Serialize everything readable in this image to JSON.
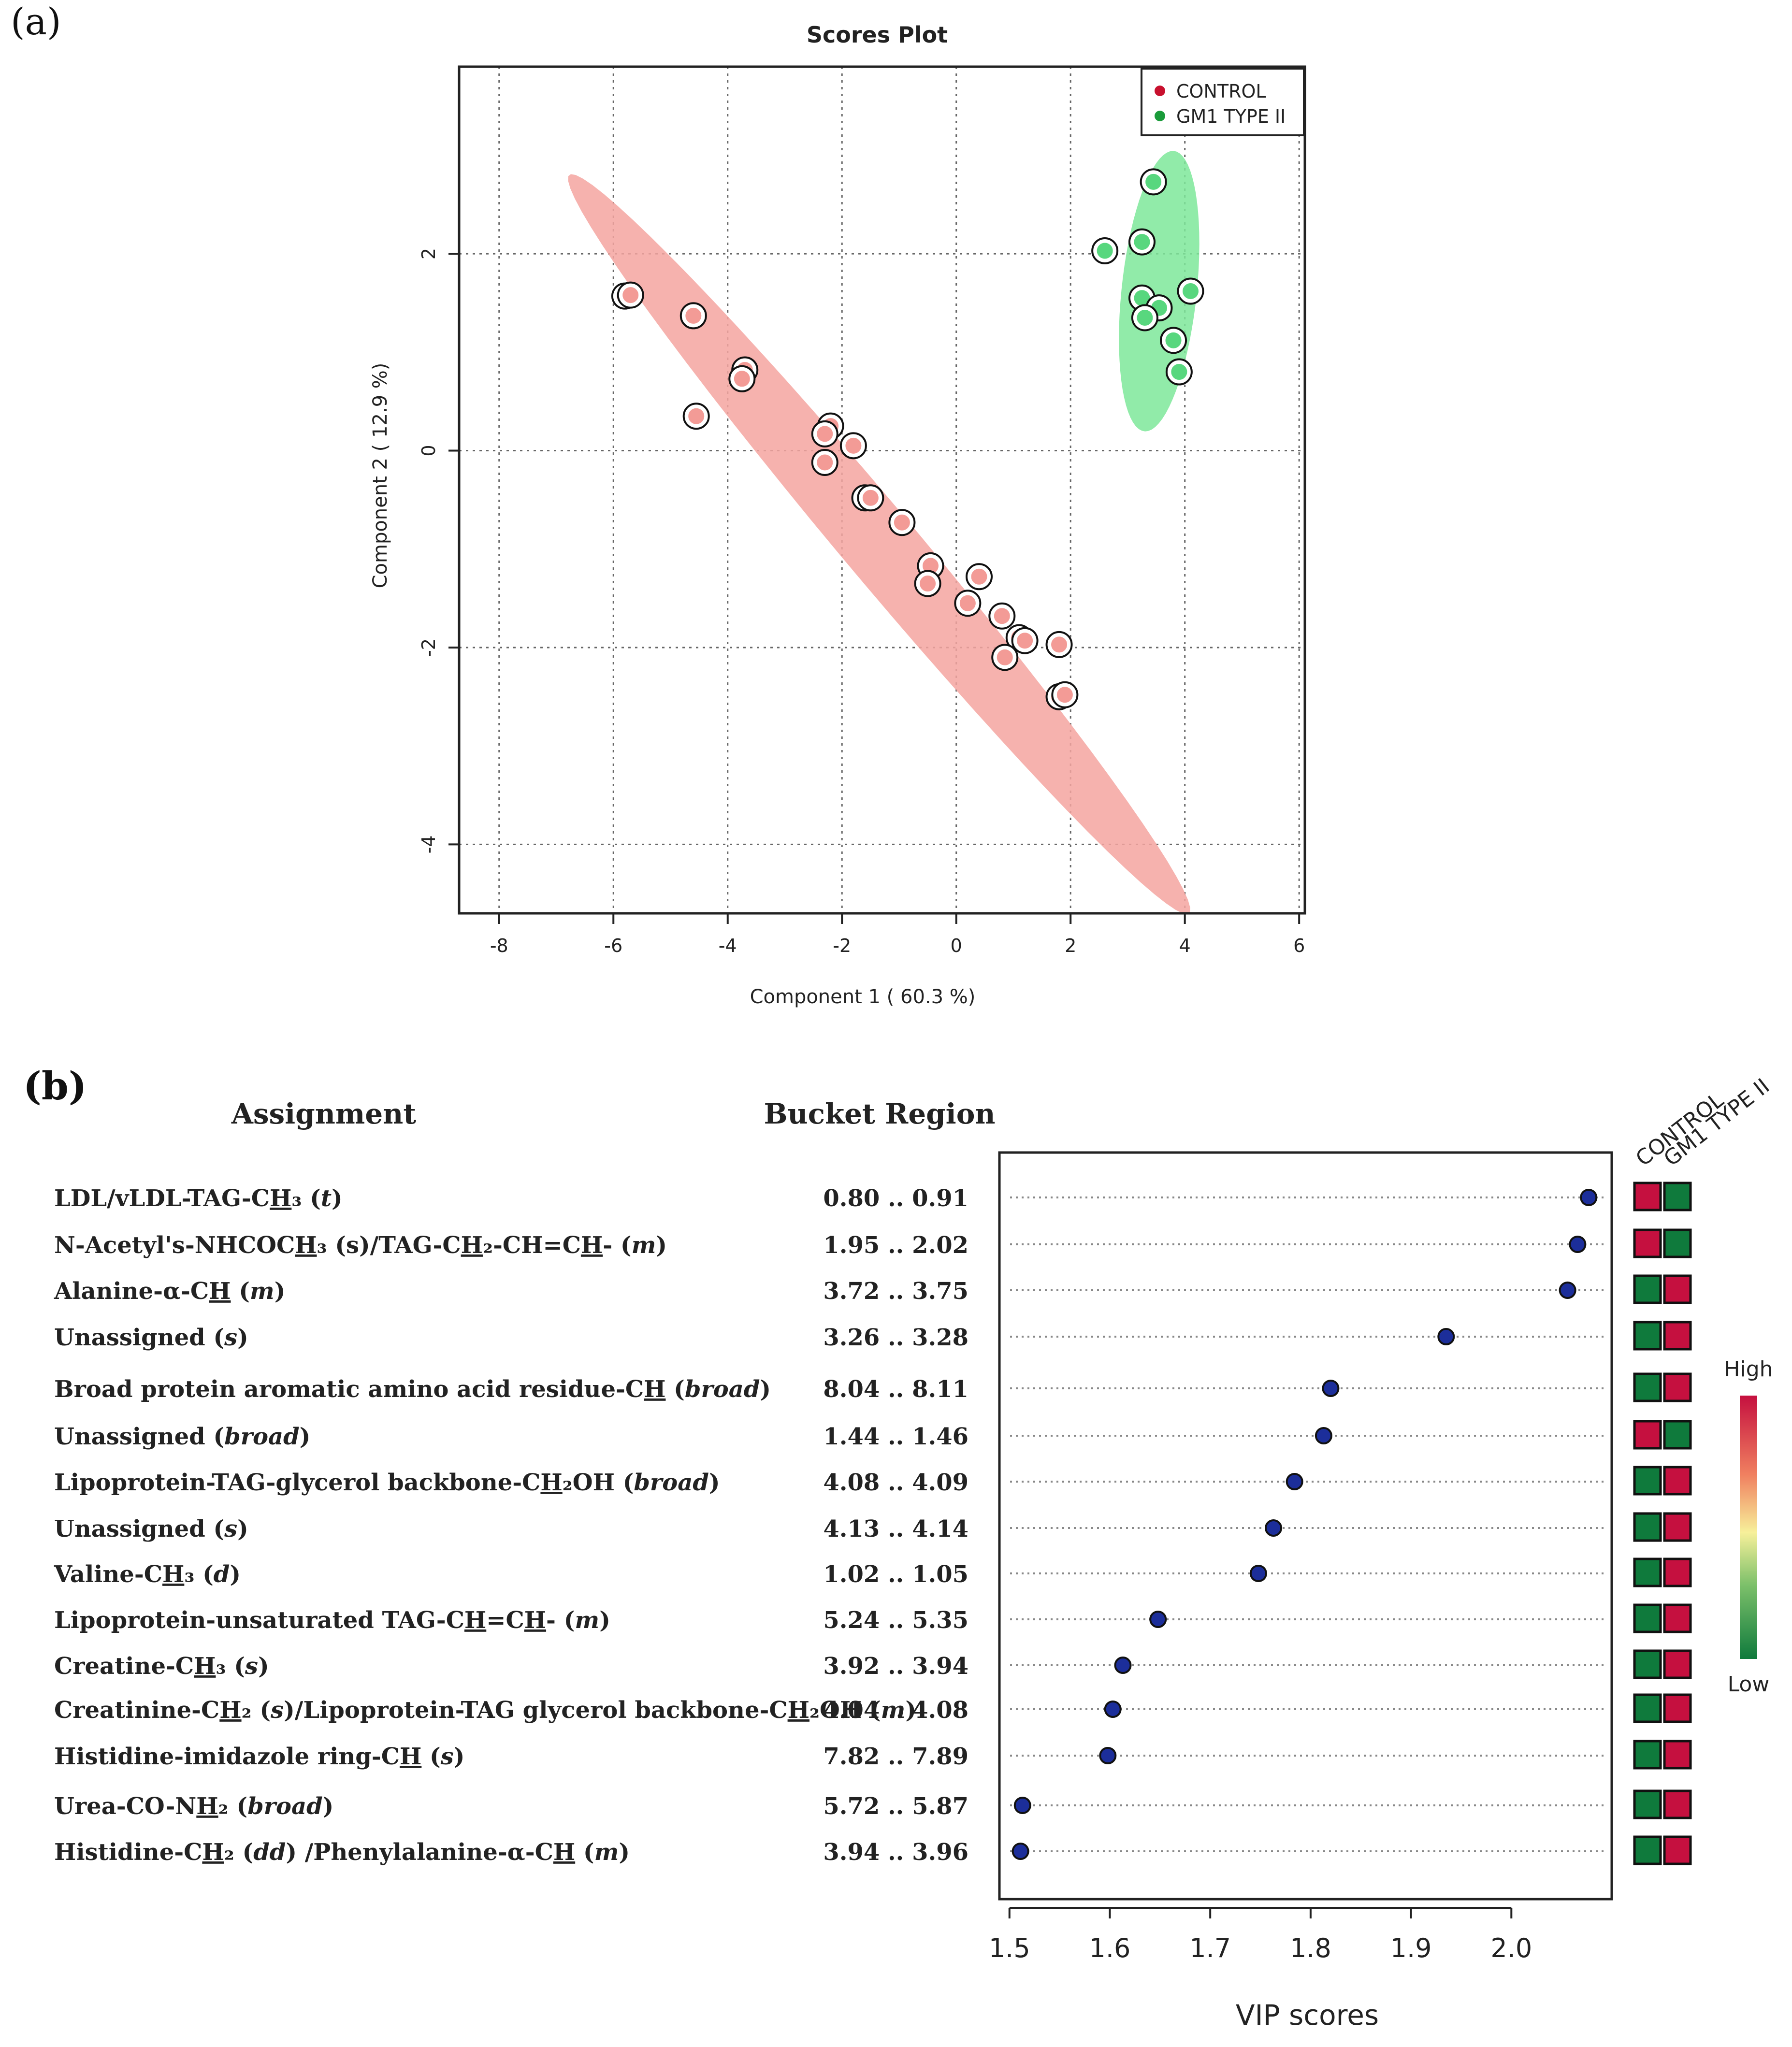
{
  "panel_a": {
    "label": "(a)",
    "chart_data": {
      "type": "scatter",
      "title": "Scores Plot",
      "xlabel": "Component 1 ( 60.3 %)",
      "ylabel": "Component 2 ( 12.9 %)",
      "xlim": [
        -8.7,
        6.1
      ],
      "ylim": [
        -4.7,
        3.9
      ],
      "xticks": [
        -8,
        -6,
        -4,
        -2,
        0,
        2,
        4,
        6
      ],
      "yticks": [
        -4,
        -2,
        0,
        2
      ],
      "xtick_labels": [
        "-8",
        "-6",
        "-4",
        "-2",
        "0",
        "2",
        "4",
        "6"
      ],
      "ytick_labels": [
        "-4",
        "-2",
        "0",
        "2"
      ],
      "grid": true,
      "legend_position": "top-right",
      "series": [
        {
          "name": "CONTROL",
          "marker_color": "#c8102e",
          "point_fill": "#f39b96",
          "ellipse_fill": "#f4a4a0",
          "ellipse": {
            "center": [
              -1.35,
              -0.95
            ],
            "semi_major": 6.6,
            "semi_minor": 0.48,
            "angle_deg": -34.5
          },
          "points": [
            [
              -5.8,
              1.57
            ],
            [
              -5.7,
              1.58
            ],
            [
              -4.6,
              1.37
            ],
            [
              -4.55,
              0.35
            ],
            [
              -3.7,
              0.82
            ],
            [
              -3.75,
              0.73
            ],
            [
              -2.2,
              0.25
            ],
            [
              -2.3,
              0.17
            ],
            [
              -1.8,
              0.05
            ],
            [
              -2.3,
              -0.12
            ],
            [
              -1.6,
              -0.48
            ],
            [
              -1.5,
              -0.48
            ],
            [
              -0.95,
              -0.73
            ],
            [
              -0.45,
              -1.17
            ],
            [
              -0.5,
              -1.35
            ],
            [
              0.4,
              -1.28
            ],
            [
              0.2,
              -1.55
            ],
            [
              0.8,
              -1.68
            ],
            [
              1.1,
              -1.9
            ],
            [
              1.2,
              -1.93
            ],
            [
              1.8,
              -1.97
            ],
            [
              0.85,
              -2.1
            ],
            [
              1.8,
              -2.5
            ],
            [
              1.9,
              -2.48
            ]
          ]
        },
        {
          "name": "GM1 TYPE II",
          "marker_color": "#1a9b3a",
          "point_fill": "#58d77e",
          "ellipse_fill": "#7ee89a",
          "ellipse": {
            "center": [
              3.55,
              1.62
            ],
            "semi_major": 1.45,
            "semi_minor": 0.65,
            "angle_deg": 78
          },
          "points": [
            [
              3.45,
              2.73
            ],
            [
              2.6,
              2.03
            ],
            [
              3.25,
              2.12
            ],
            [
              4.1,
              1.62
            ],
            [
              3.25,
              1.55
            ],
            [
              3.55,
              1.45
            ],
            [
              3.3,
              1.35
            ],
            [
              3.8,
              1.12
            ],
            [
              3.9,
              0.8
            ]
          ]
        }
      ]
    }
  },
  "panel_b": {
    "label": "(b)",
    "header_assignment": "Assignment",
    "header_bucket": "Bucket Region",
    "heat_columns": [
      "CONTROL",
      "GM1 TYPE II"
    ],
    "scale_high": "High",
    "scale_low": "Low",
    "colors": {
      "high": "#c5103f",
      "low": "#0f7a3c",
      "point": "#1c2e9a"
    },
    "chart_data": {
      "type": "scatter",
      "xlabel": "VIP scores",
      "xlim": [
        1.49,
        2.1
      ],
      "xticks": [
        1.5,
        1.6,
        1.7,
        1.8,
        1.9,
        2.0
      ],
      "xtick_labels": [
        "1.5",
        "1.6",
        "1.7",
        "1.8",
        "1.9",
        "2.0"
      ],
      "rows": [
        {
          "assignment": [
            {
              "t": "LDL/vLDL-TAG-C"
            },
            {
              "t": "H",
              "u": 1
            },
            {
              "t": "₃ ("
            },
            {
              "t": "t",
              "i": 1
            },
            {
              "t": ")"
            }
          ],
          "bucket": "0.80 .. 0.91",
          "vip": 2.077,
          "heat": [
            "high",
            "low"
          ]
        },
        {
          "assignment": [
            {
              "t": "N-Acetyl's-NHCOC"
            },
            {
              "t": "H",
              "u": 1
            },
            {
              "t": "₃ (s)/TAG-C"
            },
            {
              "t": "H",
              "u": 1
            },
            {
              "t": "₂-CH=C"
            },
            {
              "t": "H",
              "u": 1
            },
            {
              "t": "- ("
            },
            {
              "t": "m",
              "i": 1
            },
            {
              "t": ")"
            }
          ],
          "bucket": "1.95 .. 2.02",
          "vip": 2.066,
          "heat": [
            "high",
            "low"
          ]
        },
        {
          "assignment": [
            {
              "t": "Alanine-α-C"
            },
            {
              "t": "H",
              "u": 1
            },
            {
              "t": " ("
            },
            {
              "t": "m",
              "i": 1
            },
            {
              "t": ")"
            }
          ],
          "bucket": "3.72 .. 3.75",
          "vip": 2.056,
          "heat": [
            "low",
            "high"
          ]
        },
        {
          "assignment": [
            {
              "t": "Unassigned ("
            },
            {
              "t": "s",
              "i": 1
            },
            {
              "t": ")"
            }
          ],
          "bucket": "3.26 .. 3.28",
          "vip": 1.935,
          "heat": [
            "low",
            "high"
          ]
        },
        {
          "assignment": [
            {
              "t": "Broad protein aromatic amino acid residue-C"
            },
            {
              "t": "H",
              "u": 1
            },
            {
              "t": " ("
            },
            {
              "t": "broad",
              "i": 1
            },
            {
              "t": ")"
            }
          ],
          "bucket": "8.04 .. 8.11",
          "vip": 1.82,
          "heat": [
            "low",
            "high"
          ]
        },
        {
          "assignment": [
            {
              "t": "Unassigned ("
            },
            {
              "t": "broad",
              "i": 1
            },
            {
              "t": ")"
            }
          ],
          "bucket": "1.44 .. 1.46",
          "vip": 1.813,
          "heat": [
            "high",
            "low"
          ]
        },
        {
          "assignment": [
            {
              "t": "Lipoprotein-TAG-glycerol backbone-C"
            },
            {
              "t": "H",
              "u": 1
            },
            {
              "t": "₂OH ("
            },
            {
              "t": "broad",
              "i": 1
            },
            {
              "t": ")"
            }
          ],
          "bucket": "4.08 .. 4.09",
          "vip": 1.784,
          "heat": [
            "low",
            "high"
          ]
        },
        {
          "assignment": [
            {
              "t": "Unassigned ("
            },
            {
              "t": "s",
              "i": 1
            },
            {
              "t": ")"
            }
          ],
          "bucket": "4.13 .. 4.14",
          "vip": 1.763,
          "heat": [
            "low",
            "high"
          ]
        },
        {
          "assignment": [
            {
              "t": "Valine-C"
            },
            {
              "t": "H",
              "u": 1
            },
            {
              "t": "₃ ("
            },
            {
              "t": "d",
              "i": 1
            },
            {
              "t": ")"
            }
          ],
          "bucket": "1.02 .. 1.05",
          "vip": 1.748,
          "heat": [
            "low",
            "high"
          ]
        },
        {
          "assignment": [
            {
              "t": "Lipoprotein-unsaturated TAG-C"
            },
            {
              "t": "H",
              "u": 1
            },
            {
              "t": "=C"
            },
            {
              "t": "H",
              "u": 1
            },
            {
              "t": "- ("
            },
            {
              "t": "m",
              "i": 1
            },
            {
              "t": ")"
            }
          ],
          "bucket": "5.24 .. 5.35",
          "vip": 1.648,
          "heat": [
            "low",
            "high"
          ]
        },
        {
          "assignment": [
            {
              "t": "Creatine-C"
            },
            {
              "t": "H",
              "u": 1
            },
            {
              "t": "₃ ("
            },
            {
              "t": "s",
              "i": 1
            },
            {
              "t": ")"
            }
          ],
          "bucket": "3.92 .. 3.94",
          "vip": 1.613,
          "heat": [
            "low",
            "high"
          ]
        },
        {
          "assignment": [
            {
              "t": "Creatinine-C"
            },
            {
              "t": "H",
              "u": 1
            },
            {
              "t": "₂ ("
            },
            {
              "t": "s",
              "i": 1
            },
            {
              "t": ")/Lipoprotein-TAG glycerol backbone-C"
            },
            {
              "t": "H",
              "u": 1
            },
            {
              "t": "₂OH ("
            },
            {
              "t": "m",
              "i": 1
            },
            {
              "t": ")"
            }
          ],
          "bucket": "4.04 .. 4.08",
          "vip": 1.603,
          "heat": [
            "low",
            "high"
          ]
        },
        {
          "assignment": [
            {
              "t": "Histidine-imidazole ring-C"
            },
            {
              "t": "H",
              "u": 1
            },
            {
              "t": " ("
            },
            {
              "t": "s",
              "i": 1
            },
            {
              "t": ")"
            }
          ],
          "bucket": "7.82 .. 7.89",
          "vip": 1.598,
          "heat": [
            "low",
            "high"
          ]
        },
        {
          "assignment": [
            {
              "t": "Urea-CO-N"
            },
            {
              "t": "H",
              "u": 1
            },
            {
              "t": "₂ ("
            },
            {
              "t": "broad",
              "i": 1
            },
            {
              "t": ")"
            }
          ],
          "bucket": "5.72 .. 5.87",
          "vip": 1.513,
          "heat": [
            "low",
            "high"
          ]
        },
        {
          "assignment": [
            {
              "t": "Histidine-C"
            },
            {
              "t": "H",
              "u": 1
            },
            {
              "t": "₂ ("
            },
            {
              "t": "dd",
              "i": 1
            },
            {
              "t": ") /Phenylalanine-α-C"
            },
            {
              "t": "H",
              "u": 1
            },
            {
              "t": " ("
            },
            {
              "t": "m",
              "i": 1
            },
            {
              "t": ")"
            }
          ],
          "bucket": "3.94 .. 3.96",
          "vip": 1.511,
          "heat": [
            "low",
            "high"
          ]
        }
      ]
    }
  }
}
